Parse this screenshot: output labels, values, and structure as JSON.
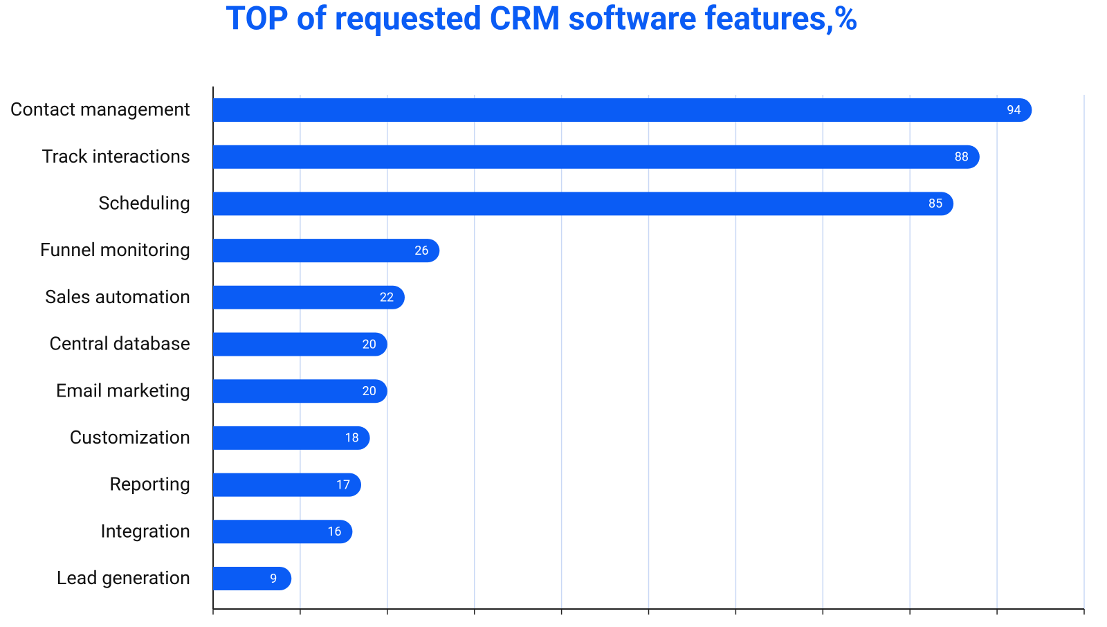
{
  "chart_data": {
    "type": "bar",
    "orientation": "horizontal",
    "title": "TOP of requested CRM software features,%",
    "categories": [
      "Contact management",
      "Track interactions",
      "Scheduling",
      "Funnel monitoring",
      "Sales automation",
      "Central database",
      "Email marketing",
      "Customization",
      "Reporting",
      "Integration",
      "Lead generation"
    ],
    "values": [
      94,
      88,
      85,
      26,
      22,
      20,
      20,
      18,
      17,
      16,
      9
    ],
    "color": "#0a5cf5",
    "grid_color": "#c9d8f5",
    "xlim": [
      0,
      100
    ],
    "xticks": [
      0,
      10,
      20,
      30,
      40,
      50,
      60,
      70,
      80,
      90,
      100
    ],
    "grid": true
  }
}
